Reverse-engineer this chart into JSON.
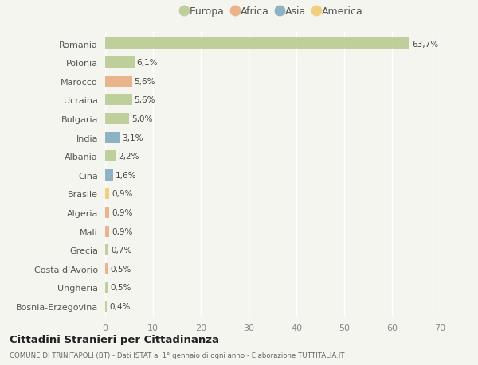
{
  "countries": [
    "Romania",
    "Polonia",
    "Marocco",
    "Ucraina",
    "Bulgaria",
    "India",
    "Albania",
    "Cina",
    "Brasile",
    "Algeria",
    "Mali",
    "Grecia",
    "Costa d'Avorio",
    "Ungheria",
    "Bosnia-Erzegovina"
  ],
  "values": [
    63.7,
    6.1,
    5.6,
    5.6,
    5.0,
    3.1,
    2.2,
    1.6,
    0.9,
    0.9,
    0.9,
    0.7,
    0.5,
    0.5,
    0.4
  ],
  "labels": [
    "63,7%",
    "6,1%",
    "5,6%",
    "5,6%",
    "5,0%",
    "3,1%",
    "2,2%",
    "1,6%",
    "0,9%",
    "0,9%",
    "0,9%",
    "0,7%",
    "0,5%",
    "0,5%",
    "0,4%"
  ],
  "colors": [
    "#b5c98e",
    "#b5c98e",
    "#e8a87c",
    "#b5c98e",
    "#b5c98e",
    "#7ba7bc",
    "#b5c98e",
    "#7ba7bc",
    "#f0c96e",
    "#e8a87c",
    "#e8a87c",
    "#b5c98e",
    "#e8a87c",
    "#b5c98e",
    "#b5c98e"
  ],
  "legend_labels": [
    "Europa",
    "Africa",
    "Asia",
    "America"
  ],
  "legend_colors": [
    "#b5c98e",
    "#e8a87c",
    "#7ba7bc",
    "#f0c96e"
  ],
  "xlim": [
    0,
    70
  ],
  "xticks": [
    0,
    10,
    20,
    30,
    40,
    50,
    60,
    70
  ],
  "title": "Cittadini Stranieri per Cittadinanza",
  "subtitle": "COMUNE DI TRINITAPOLI (BT) - Dati ISTAT al 1° gennaio di ogni anno - Elaborazione TUTTITALIA.IT",
  "background_color": "#f5f5f0",
  "bar_height": 0.6
}
